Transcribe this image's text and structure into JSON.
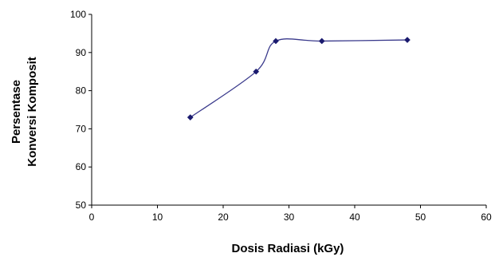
{
  "chart_data": {
    "type": "line",
    "title": "",
    "xlabel": "Dosis Radiasi (kGy)",
    "ylabel_lines": [
      "Persentase",
      "Konversi Komposit"
    ],
    "xlim": [
      0,
      60
    ],
    "ylim": [
      50,
      100
    ],
    "x_ticks": [
      "0",
      "10",
      "20",
      "30",
      "40",
      "50",
      "60"
    ],
    "y_ticks": [
      "50",
      "60",
      "70",
      "80",
      "90",
      "100"
    ],
    "grid": false,
    "legend": "none",
    "series": [
      {
        "x": [
          15,
          25,
          28,
          35,
          48
        ],
        "values": [
          73,
          85,
          93,
          93,
          93.3
        ],
        "color": "#3a3a8c",
        "marker": "diamond",
        "smooth": true
      }
    ]
  }
}
